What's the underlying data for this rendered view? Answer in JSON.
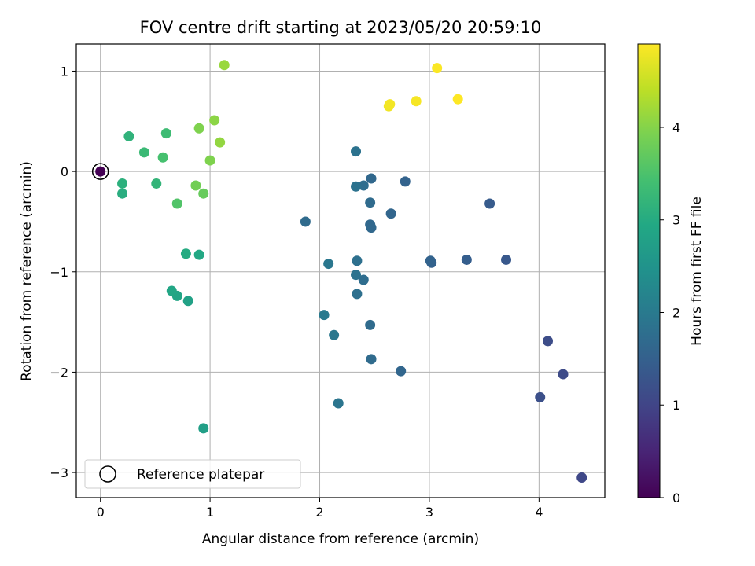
{
  "chart_data": {
    "type": "scatter",
    "title": "FOV centre drift starting at 2023/05/20 20:59:10",
    "xlabel": "Angular distance from reference (arcmin)",
    "ylabel": "Rotation from reference (arcmin)",
    "xlim": [
      -0.22,
      4.6
    ],
    "ylim": [
      -3.25,
      1.27
    ],
    "x_ticks": [
      0,
      1,
      2,
      3,
      4
    ],
    "y_ticks": [
      -3,
      -2,
      -1,
      0,
      1
    ],
    "grid": true,
    "legend": {
      "placement": "lower-left",
      "entries": [
        "Reference platepar"
      ]
    },
    "colorbar": {
      "label": "Hours from first FF file",
      "range": [
        0,
        4.9
      ],
      "ticks": [
        0,
        1,
        2,
        3,
        4
      ],
      "colormap": "viridis"
    },
    "reference_point": {
      "x": 0,
      "y": 0
    },
    "points": [
      {
        "x": 0.0,
        "y": 0.0,
        "c": 0.0
      },
      {
        "x": 4.39,
        "y": -3.05,
        "c": 1.05
      },
      {
        "x": 4.22,
        "y": -2.02,
        "c": 1.1
      },
      {
        "x": 4.08,
        "y": -1.69,
        "c": 1.15
      },
      {
        "x": 4.01,
        "y": -2.25,
        "c": 1.2
      },
      {
        "x": 3.7,
        "y": -0.88,
        "c": 1.35
      },
      {
        "x": 3.55,
        "y": -0.32,
        "c": 1.4
      },
      {
        "x": 3.34,
        "y": -0.88,
        "c": 1.45
      },
      {
        "x": 3.02,
        "y": -0.91,
        "c": 1.5
      },
      {
        "x": 3.01,
        "y": -0.89,
        "c": 1.55
      },
      {
        "x": 2.78,
        "y": -0.1,
        "c": 1.55
      },
      {
        "x": 2.74,
        "y": -1.99,
        "c": 1.6
      },
      {
        "x": 2.65,
        "y": -0.42,
        "c": 1.6
      },
      {
        "x": 2.47,
        "y": -0.56,
        "c": 1.65
      },
      {
        "x": 2.46,
        "y": -0.53,
        "c": 1.65
      },
      {
        "x": 2.47,
        "y": -0.07,
        "c": 1.65
      },
      {
        "x": 2.46,
        "y": -0.31,
        "c": 1.7
      },
      {
        "x": 2.46,
        "y": -1.53,
        "c": 1.7
      },
      {
        "x": 2.47,
        "y": -1.87,
        "c": 1.7
      },
      {
        "x": 2.4,
        "y": -1.08,
        "c": 1.75
      },
      {
        "x": 2.4,
        "y": -0.14,
        "c": 1.75
      },
      {
        "x": 2.34,
        "y": -0.89,
        "c": 1.8
      },
      {
        "x": 2.34,
        "y": -1.22,
        "c": 1.8
      },
      {
        "x": 2.33,
        "y": -1.03,
        "c": 1.85
      },
      {
        "x": 2.33,
        "y": 0.2,
        "c": 1.85
      },
      {
        "x": 2.33,
        "y": -0.15,
        "c": 1.85
      },
      {
        "x": 2.17,
        "y": -2.31,
        "c": 1.9
      },
      {
        "x": 2.13,
        "y": -1.63,
        "c": 1.95
      },
      {
        "x": 2.08,
        "y": -0.92,
        "c": 1.95
      },
      {
        "x": 2.04,
        "y": -1.43,
        "c": 2.0
      },
      {
        "x": 1.87,
        "y": -0.5,
        "c": 1.7
      },
      {
        "x": 0.94,
        "y": -2.56,
        "c": 2.75
      },
      {
        "x": 0.8,
        "y": -1.29,
        "c": 2.8
      },
      {
        "x": 0.7,
        "y": -1.24,
        "c": 2.85
      },
      {
        "x": 0.65,
        "y": -1.19,
        "c": 2.9
      },
      {
        "x": 0.9,
        "y": -0.83,
        "c": 2.95
      },
      {
        "x": 0.78,
        "y": -0.82,
        "c": 3.0
      },
      {
        "x": 0.2,
        "y": -0.22,
        "c": 3.05
      },
      {
        "x": 0.2,
        "y": -0.12,
        "c": 3.1
      },
      {
        "x": 0.26,
        "y": 0.35,
        "c": 3.15
      },
      {
        "x": 0.51,
        "y": -0.12,
        "c": 3.2
      },
      {
        "x": 0.4,
        "y": 0.19,
        "c": 3.3
      },
      {
        "x": 0.6,
        "y": 0.38,
        "c": 3.35
      },
      {
        "x": 0.57,
        "y": 0.14,
        "c": 3.45
      },
      {
        "x": 0.7,
        "y": -0.32,
        "c": 3.55
      },
      {
        "x": 0.94,
        "y": -0.22,
        "c": 3.75
      },
      {
        "x": 0.87,
        "y": -0.14,
        "c": 3.85
      },
      {
        "x": 0.9,
        "y": 0.43,
        "c": 3.95
      },
      {
        "x": 1.0,
        "y": 0.11,
        "c": 3.95
      },
      {
        "x": 1.04,
        "y": 0.51,
        "c": 4.05
      },
      {
        "x": 1.09,
        "y": 0.29,
        "c": 4.1
      },
      {
        "x": 1.13,
        "y": 1.06,
        "c": 4.15
      },
      {
        "x": 2.63,
        "y": 0.65,
        "c": 4.8
      },
      {
        "x": 2.64,
        "y": 0.67,
        "c": 4.82
      },
      {
        "x": 2.88,
        "y": 0.7,
        "c": 4.85
      },
      {
        "x": 3.07,
        "y": 1.03,
        "c": 4.88
      },
      {
        "x": 3.26,
        "y": 0.72,
        "c": 4.9
      }
    ]
  }
}
